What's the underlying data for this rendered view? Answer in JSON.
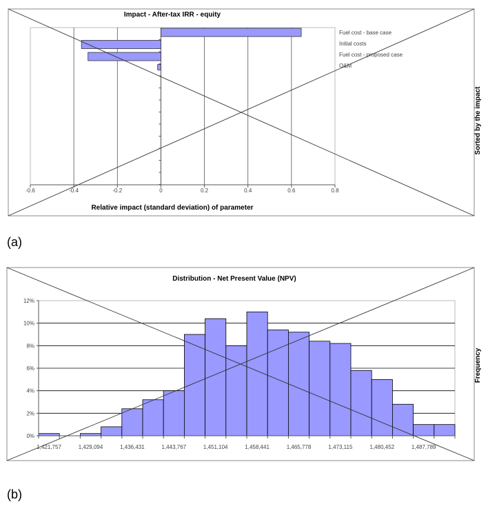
{
  "panel_labels": [
    "(a)",
    "(b)"
  ],
  "chart_data": [
    {
      "type": "bar",
      "orientation": "horizontal",
      "title": "Impact - After-tax IRR - equity",
      "xlabel": "Relative impact (standard deviation) of parameter",
      "ylabel": "Sorted by the impact",
      "categories": [
        "Fuel cost - base case",
        "Initial costs",
        "Fuel cost - proposed case",
        "O&M"
      ],
      "values": [
        0.645,
        -0.365,
        -0.335,
        -0.015
      ],
      "xlim": [
        -0.6,
        0.8
      ],
      "xticks": [
        "-0.6",
        "-0.4",
        "-0.2",
        "0",
        "0.2",
        "0.4",
        "0.6",
        "0.8"
      ],
      "grid": true,
      "bar_color": "#9999ff"
    },
    {
      "type": "bar",
      "title": "Distribution - Net Present Value (NPV)",
      "xlabel": "",
      "ylabel": "Frequency",
      "values": [
        0.2,
        0,
        0.2,
        0.8,
        2.4,
        3.2,
        4.0,
        9.0,
        10.4,
        8.0,
        11.0,
        9.4,
        9.2,
        8.4,
        8.2,
        5.8,
        5.0,
        2.8,
        1.0,
        1.0
      ],
      "xticks": [
        "1,421,757",
        "1,429,094",
        "1,436,431",
        "1,443,767",
        "1,451,104",
        "1,458,441",
        "1,465,778",
        "1,473,115",
        "1,480,452",
        "1,487,789"
      ],
      "yticks": [
        "0%",
        "2%",
        "4%",
        "6%",
        "8%",
        "10%",
        "12%"
      ],
      "ylim": [
        0,
        12
      ],
      "grid": true,
      "bar_color": "#9999ff"
    }
  ]
}
